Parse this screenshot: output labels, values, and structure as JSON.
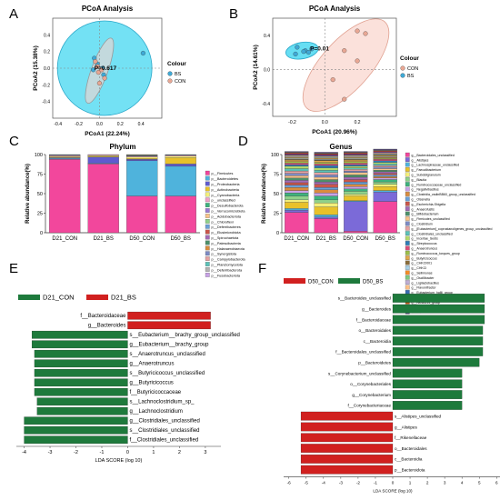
{
  "figure": {
    "panel_letters": [
      "A",
      "B",
      "C",
      "D",
      "E",
      "F"
    ]
  },
  "chart_data": [
    {
      "panel": "A",
      "type": "scatter",
      "title": "PCoA Analysis",
      "xlabel": "PCoA1 (22.24%)",
      "ylabel": "PCoA2 (15.38%)",
      "xlim": [
        -0.45,
        0.6
      ],
      "ylim": [
        -0.6,
        0.6
      ],
      "xticks": [
        "-0.4",
        "-0.2",
        "0.0",
        "0.2",
        "0.4"
      ],
      "yticks": [
        "0.4",
        "0.2",
        "0.0",
        "-0.2",
        "-0.4"
      ],
      "annotation": "P=0.617",
      "legend_title": "Colour",
      "series": [
        {
          "name": "BS",
          "color": "#3fa9d6",
          "points": [
            [
              -0.05,
              0.12
            ],
            [
              -0.02,
              0.05
            ],
            [
              0.04,
              -0.08
            ],
            [
              0.42,
              0.18
            ],
            [
              -0.06,
              -0.02
            ],
            [
              0.03,
              0.0
            ]
          ]
        },
        {
          "name": "CON",
          "color": "#e8a794",
          "points": [
            [
              -0.04,
              0.08
            ],
            [
              -0.01,
              -0.05
            ],
            [
              0.02,
              -0.02
            ],
            [
              0.05,
              -0.12
            ],
            [
              -0.02,
              0.02
            ],
            [
              0.0,
              -0.18
            ]
          ]
        }
      ]
    },
    {
      "panel": "B",
      "type": "scatter",
      "title": "PCoA Analysis",
      "xlabel": "PCoA1 (20.96%)",
      "ylabel": "PCoA2 (14.61%)",
      "xlim": [
        -0.32,
        0.44
      ],
      "ylim": [
        -0.55,
        0.6
      ],
      "xticks": [
        "-0.2",
        "0.0",
        "0.2"
      ],
      "yticks": [
        "0.4",
        "0.0",
        "-0.4"
      ],
      "annotation": "P=0.01",
      "legend_title": "Colour",
      "series": [
        {
          "name": "CON",
          "color": "#e8a794",
          "points": [
            [
              0.2,
              0.45
            ],
            [
              0.25,
              0.42
            ],
            [
              0.12,
              0.22
            ],
            [
              0.2,
              0.1
            ],
            [
              0.05,
              -0.12
            ],
            [
              0.12,
              -0.35
            ]
          ]
        },
        {
          "name": "BS",
          "color": "#3fa9d6",
          "points": [
            [
              -0.17,
              0.26
            ],
            [
              -0.12,
              0.22
            ],
            [
              -0.1,
              0.2
            ],
            [
              -0.08,
              0.24
            ],
            [
              -0.18,
              0.18
            ],
            [
              -0.13,
              0.21
            ]
          ]
        }
      ]
    },
    {
      "panel": "C",
      "type": "bar",
      "stacked": true,
      "title": "Phylum",
      "ylabel": "Relative abundance(%)",
      "ylim": [
        0,
        100
      ],
      "yticks": [
        "0",
        "25",
        "50",
        "75",
        "100"
      ],
      "categories": [
        "D21_CON",
        "D21_BS",
        "D50_CON",
        "D50_BS"
      ],
      "series": [
        {
          "name": "p__Firmicutes",
          "color": "#f2479c",
          "values": [
            94,
            88,
            47,
            47
          ]
        },
        {
          "name": "p__Bacteroidetes",
          "color": "#4fb3dc",
          "values": [
            1,
            1,
            45,
            38
          ]
        },
        {
          "name": "p__Proteobacteria",
          "color": "#5e5bcf",
          "values": [
            1,
            8,
            2,
            3
          ]
        },
        {
          "name": "p__Actinobacteria",
          "color": "#e8c12a",
          "values": [
            1,
            1,
            1,
            8
          ]
        },
        {
          "name": "p__Cyanobacteria",
          "color": "#f3ef7a",
          "values": [
            1,
            1,
            2,
            2
          ]
        },
        {
          "name": "p__unclassified",
          "color": "#f0a0c8",
          "values": [
            1,
            1,
            1,
            1
          ]
        },
        {
          "name": "p__Desulfobacterota",
          "color": "#3db37d",
          "values": [
            0.5,
            0,
            0.5,
            0.5
          ]
        },
        {
          "name": "p__Verrucomicrobiota",
          "color": "#9a7bd3",
          "values": [
            0.5,
            0,
            0.5,
            0.5
          ]
        },
        {
          "name": "p__Acidobacteriota",
          "color": "#f7c38a",
          "values": [
            0,
            0,
            0.5,
            0
          ]
        },
        {
          "name": "p__Chloroflexi",
          "color": "#8fd18a",
          "values": [
            0,
            0,
            0.5,
            0
          ]
        },
        {
          "name": "p__Deferribacteres",
          "color": "#6aa0d8",
          "values": [
            0,
            0,
            0,
            0
          ]
        },
        {
          "name": "p__Elusimicrobiota",
          "color": "#c9564a",
          "values": [
            0,
            0,
            0,
            0
          ]
        },
        {
          "name": "p__Spirochaetota",
          "color": "#a36bb5",
          "values": [
            0,
            0,
            0,
            0
          ]
        },
        {
          "name": "p__Patescibacteria",
          "color": "#4d8f6a",
          "values": [
            0,
            0,
            0,
            0
          ]
        },
        {
          "name": "p__Halanaerobiaeota",
          "color": "#d98c3e",
          "values": [
            0,
            0,
            0,
            0
          ]
        },
        {
          "name": "p__Synergistota",
          "color": "#7d8bc4",
          "values": [
            0,
            0,
            0,
            0
          ]
        },
        {
          "name": "p__Campylobacterota",
          "color": "#e7a3a3",
          "values": [
            0,
            0,
            0,
            0
          ]
        },
        {
          "name": "p__Planctomycetota",
          "color": "#5cc2b8",
          "values": [
            0,
            0,
            0,
            0
          ]
        },
        {
          "name": "p__Deferribacterota",
          "color": "#b2b2b2",
          "values": [
            0,
            0,
            0,
            0
          ]
        },
        {
          "name": "p__Fusobacteriota",
          "color": "#c8a2e6",
          "values": [
            0,
            0,
            0,
            0
          ]
        }
      ]
    },
    {
      "panel": "D",
      "type": "bar",
      "stacked": true,
      "title": "Genus",
      "ylabel": "Relative abundance(%)",
      "ylim": [
        0,
        100
      ],
      "yticks": [
        "0",
        "25",
        "50",
        "75",
        "100"
      ],
      "categories": [
        "D21_CON",
        "D21_BS",
        "D50_CON",
        "D50_BS"
      ],
      "series": [
        {
          "name": "g__Bacteroidales_unclassified",
          "color": "#f2479c",
          "values": [
            26,
            18,
            2,
            40
          ]
        },
        {
          "name": "g__Alistipes",
          "color": "#7b6ad8",
          "values": [
            3,
            2,
            38,
            12
          ]
        },
        {
          "name": "g__Lachnospiraceae_unclassified",
          "color": "#4fb3dc",
          "values": [
            2,
            3,
            1,
            2
          ]
        },
        {
          "name": "g__Faecalibacterium",
          "color": "#e8c12a",
          "values": [
            8,
            10,
            6,
            5
          ]
        },
        {
          "name": "g__Subdoligranulum",
          "color": "#f3ef7a",
          "values": [
            3,
            5,
            2,
            3
          ]
        },
        {
          "name": "g__Blautia",
          "color": "#8fd18a",
          "values": [
            5,
            4,
            4,
            3
          ]
        },
        {
          "name": "g__Ruminococcaceae_unclassified",
          "color": "#3db37d",
          "values": [
            4,
            5,
            3,
            3
          ]
        },
        {
          "name": "g__Negativibacillus",
          "color": "#c8a2e6",
          "values": [
            3,
            4,
            3,
            2
          ]
        },
        {
          "name": "g__Clostridia_vadinBB60_group_unclassified",
          "color": "#d98c3e",
          "values": [
            4,
            4,
            3,
            2
          ]
        },
        {
          "name": "g__Olsenella",
          "color": "#6aa0d8",
          "values": [
            3,
            3,
            3,
            2
          ]
        },
        {
          "name": "g__Escherichia-Shigella",
          "color": "#c9564a",
          "values": [
            3,
            4,
            3,
            2
          ]
        },
        {
          "name": "g__Anaerofustis",
          "color": "#a36bb5",
          "values": [
            3,
            3,
            3,
            2
          ]
        },
        {
          "name": "g__Bifidobacterium",
          "color": "#4d8f6a",
          "values": [
            3,
            3,
            3,
            2
          ]
        },
        {
          "name": "g__Firmicutes_unclassified",
          "color": "#f7c38a",
          "values": [
            3,
            3,
            3,
            2
          ]
        },
        {
          "name": "g__Clostridium",
          "color": "#7d8bc4",
          "values": [
            3,
            3,
            2,
            2
          ]
        },
        {
          "name": "g__[Eubacterium]_coprostanoligenes_group_unclassified",
          "color": "#e7a3a3",
          "values": [
            3,
            3,
            2,
            2
          ]
        },
        {
          "name": "g__Clostridiales_unclassified",
          "color": "#5cc2b8",
          "values": [
            3,
            3,
            2,
            2
          ]
        },
        {
          "name": "g__Incertae_Sedis",
          "color": "#b5d96a",
          "values": [
            3,
            3,
            2,
            2
          ]
        },
        {
          "name": "g__Streptococcus",
          "color": "#2e7eb8",
          "values": [
            2,
            3,
            2,
            2
          ]
        },
        {
          "name": "g__Anaerotruncus",
          "color": "#d94f7a",
          "values": [
            2,
            2,
            2,
            2
          ]
        },
        {
          "name": "g__Ruminococcus_torques_group",
          "color": "#9bbf4a",
          "values": [
            2,
            2,
            2,
            1
          ]
        },
        {
          "name": "g__Butyricicoccus",
          "color": "#e2a84b",
          "values": [
            2,
            2,
            2,
            1
          ]
        },
        {
          "name": "g__CHKCI001",
          "color": "#8a6d3b",
          "values": [
            1,
            1,
            1,
            1
          ]
        },
        {
          "name": "g__CHKCI",
          "color": "#a8d0e6",
          "values": [
            1,
            1,
            1,
            1
          ]
        },
        {
          "name": "g__Sellimonas",
          "color": "#f28c28",
          "values": [
            1,
            1,
            1,
            1
          ]
        },
        {
          "name": "g__Oscillibacter",
          "color": "#7fc97f",
          "values": [
            1,
            1,
            1,
            1
          ]
        },
        {
          "name": "g__Ligilactobacillus",
          "color": "#beaed4",
          "values": [
            1,
            1,
            1,
            1
          ]
        },
        {
          "name": "g__Flavonifractor",
          "color": "#fdc086",
          "values": [
            1,
            1,
            1,
            1
          ]
        },
        {
          "name": "g__Eubacterium_hallii_group",
          "color": "#386cb0",
          "values": [
            1,
            1,
            1,
            1
          ]
        },
        {
          "name": "g__Erysipelatoclostridium",
          "color": "#f0027f",
          "values": [
            1,
            1,
            1,
            1
          ]
        },
        {
          "name": "g__NK4A214_group",
          "color": "#bf5b17",
          "values": [
            1,
            1,
            1,
            1
          ]
        },
        {
          "name": "g__Bacteroides",
          "color": "#666666",
          "values": [
            1,
            1,
            1,
            1
          ]
        },
        {
          "name": "Others",
          "color": "#5a4a8a",
          "values": [
            1,
            1,
            1,
            1
          ]
        }
      ]
    },
    {
      "panel": "E",
      "type": "bar",
      "orientation": "horizontal",
      "xlabel": "LDA SCORE (log 10)",
      "xlim": [
        -4.3,
        3.6
      ],
      "xticks": [
        "-4",
        "-3",
        "-2",
        "-1",
        "0",
        "1",
        "2",
        "3"
      ],
      "legend": [
        {
          "name": "D21_CON",
          "color": "#1e7a3c"
        },
        {
          "name": "D21_BS",
          "color": "#d1201f"
        }
      ],
      "categories": [
        "f__Bacteroidaceae",
        "g__Bacteroides",
        "s__Eubacterium__brachy_group_unclassified",
        "g__Eubacterium__brachy_group",
        "s__Anaerotruncus_unclassified",
        "g__Anaerotruncus",
        "s__Butyricicoccus_unclassified",
        "g__Butyricicoccus",
        "f__Butyricicoccaceae",
        "s__Lachnoclostridium_sp_",
        "g__Lachnoclostridium",
        "g__Clostridiales_unclassified",
        "s__Clostridiales_unclassified",
        "f__Clostridiales_unclassified"
      ],
      "values": [
        3.2,
        3.2,
        -3.7,
        -3.7,
        -3.6,
        -3.6,
        -3.6,
        -3.6,
        -3.6,
        -3.5,
        -3.5,
        -4.0,
        -4.0,
        -4.0
      ],
      "groups": [
        "D21_BS",
        "D21_BS",
        "D21_CON",
        "D21_CON",
        "D21_CON",
        "D21_CON",
        "D21_CON",
        "D21_CON",
        "D21_CON",
        "D21_CON",
        "D21_CON",
        "D21_CON",
        "D21_CON",
        "D21_CON"
      ]
    },
    {
      "panel": "F",
      "type": "bar",
      "orientation": "horizontal",
      "xlabel": "LDA SCORE (log 10)",
      "xlim": [
        -6.3,
        6.3
      ],
      "xticks": [
        "-6",
        "-5",
        "-4",
        "-3",
        "-2",
        "-1",
        "0",
        "1",
        "2",
        "3",
        "4",
        "5",
        "6"
      ],
      "legend": [
        {
          "name": "D50_CON",
          "color": "#d1201f"
        },
        {
          "name": "D50_BS",
          "color": "#1e7a3c"
        }
      ],
      "categories": [
        "s__Bacteroides_unclassified",
        "g__Bacteroides",
        "f__Bacteroidaceae",
        "o__Bacteroidales",
        "c__Bacteroidia",
        "f__Bacteroidales_unclassified",
        "p__Bacteroidetes",
        "s__Corynebacterium_unclassified",
        "o__Corynebacteriales",
        "g__Corynebacterium",
        "f__Corynebacteriaceae",
        "s__Alistipes_unclassified",
        "g__Alistipes",
        "f__Rikenellaceae",
        "o__Bacteroidales",
        "c__Bacteroidia",
        "p__Bacteroidota"
      ],
      "values": [
        5.3,
        5.3,
        5.3,
        5.2,
        5.2,
        5.2,
        5.0,
        4.0,
        4.0,
        4.0,
        4.0,
        -5.3,
        -5.3,
        -5.3,
        -5.3,
        -5.3,
        -5.3
      ],
      "groups": [
        "D50_BS",
        "D50_BS",
        "D50_BS",
        "D50_BS",
        "D50_BS",
        "D50_BS",
        "D50_BS",
        "D50_BS",
        "D50_BS",
        "D50_BS",
        "D50_BS",
        "D50_CON",
        "D50_CON",
        "D50_CON",
        "D50_CON",
        "D50_CON",
        "D50_CON"
      ]
    }
  ]
}
